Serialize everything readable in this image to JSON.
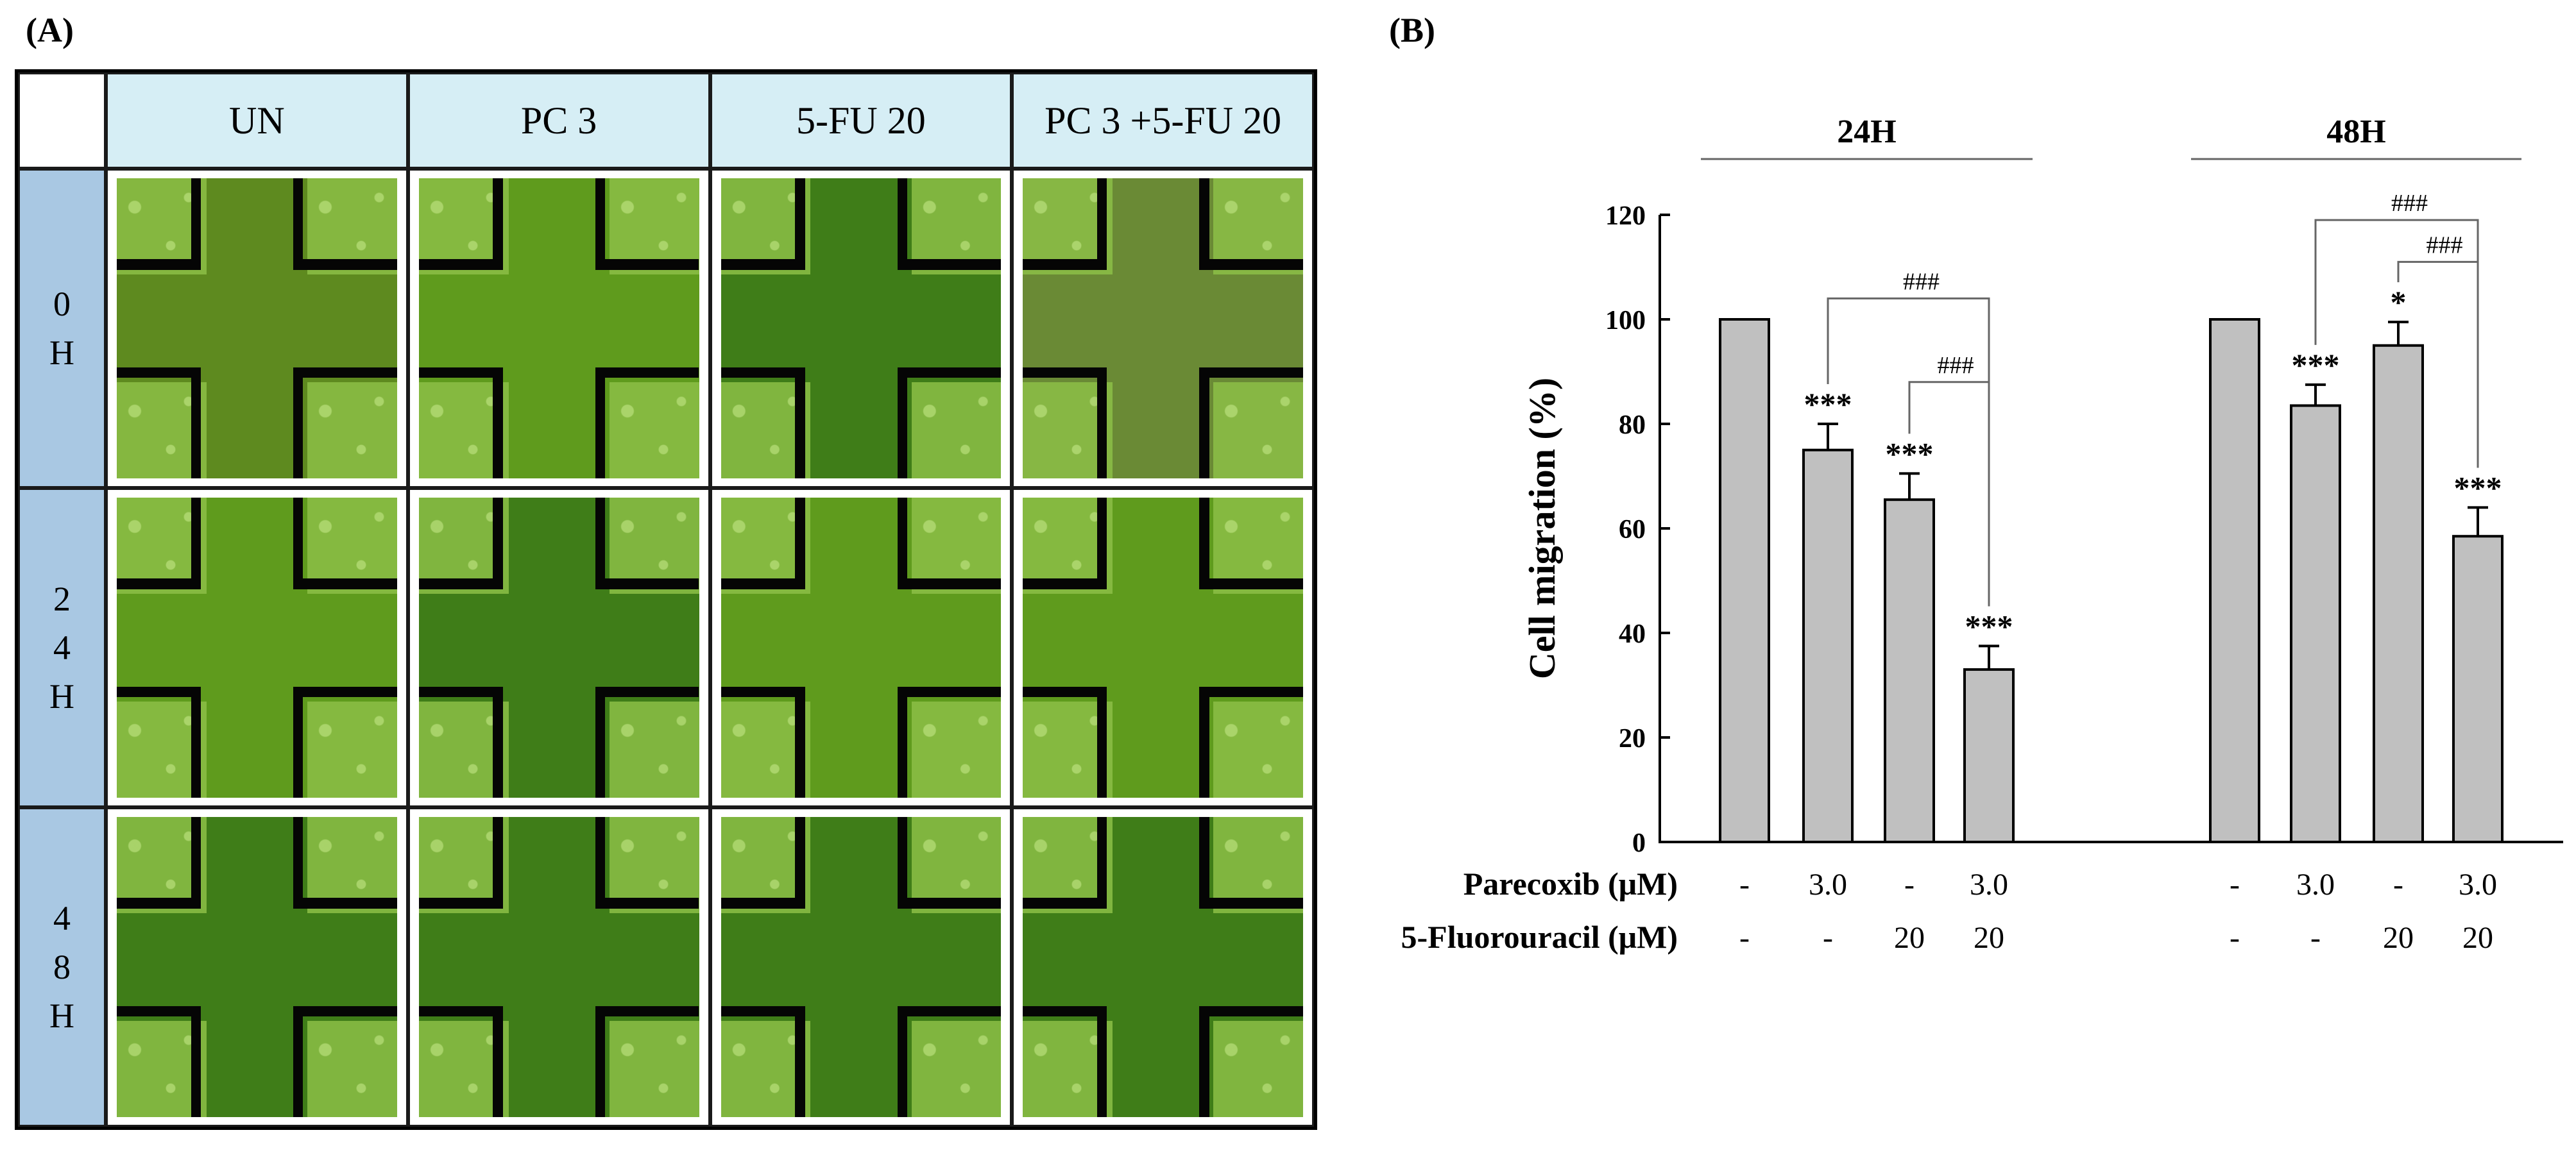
{
  "panels": {
    "a_label": "(A)",
    "b_label": "(B)"
  },
  "micrograph_grid": {
    "column_headers": [
      "UN",
      "PC 3",
      "5-FU 20",
      "PC 3 +5-FU 20"
    ],
    "row_headers": [
      {
        "value": "0",
        "unit": "H"
      },
      {
        "value": "24",
        "unit": "H"
      },
      {
        "value": "48",
        "unit": "H"
      }
    ]
  },
  "chart_data": {
    "type": "bar",
    "ylabel": "Cell migration (%)",
    "ylim": [
      0,
      120
    ],
    "yticks": [
      0,
      20,
      40,
      60,
      80,
      100,
      120
    ],
    "bar_color": "#c0c0c0",
    "groups": [
      {
        "name": "24H",
        "bars": [
          {
            "value": 100,
            "error": 0,
            "sig": ""
          },
          {
            "value": 75,
            "error": 5,
            "sig": "***"
          },
          {
            "value": 65.5,
            "error": 5,
            "sig": "***"
          },
          {
            "value": 33,
            "error": 4.5,
            "sig": "***"
          }
        ],
        "brackets": [
          {
            "from": 1,
            "to": 3,
            "label": "###"
          },
          {
            "from": 2,
            "to": 3,
            "label": "###"
          }
        ]
      },
      {
        "name": "48H",
        "bars": [
          {
            "value": 100,
            "error": 0,
            "sig": ""
          },
          {
            "value": 83.5,
            "error": 4,
            "sig": "***"
          },
          {
            "value": 95,
            "error": 4.5,
            "sig": "*"
          },
          {
            "value": 58.5,
            "error": 5.5,
            "sig": "***"
          }
        ],
        "brackets": [
          {
            "from": 1,
            "to": 3,
            "label": "###"
          },
          {
            "from": 2,
            "to": 3,
            "label": "###"
          }
        ]
      }
    ],
    "conditions": [
      {
        "label": "Parecoxib (μM)",
        "values": [
          "-",
          "3.0",
          "-",
          "3.0",
          "-",
          "3.0",
          "-",
          "3.0"
        ]
      },
      {
        "label": "5-Fluorouracil (μM)",
        "values": [
          "-",
          "-",
          "20",
          "20",
          "-",
          "-",
          "20",
          "20"
        ]
      }
    ]
  }
}
